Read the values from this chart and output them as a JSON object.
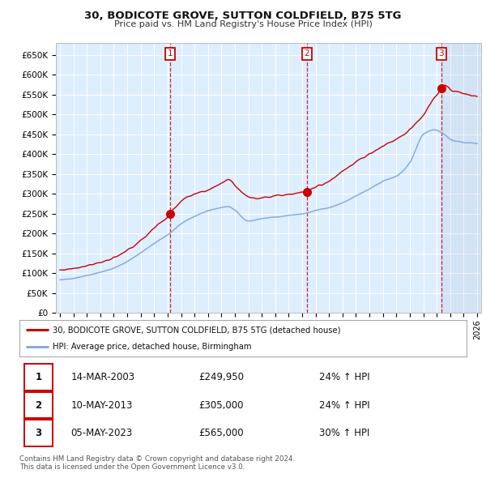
{
  "title": "30, BODICOTE GROVE, SUTTON COLDFIELD, B75 5TG",
  "subtitle": "Price paid vs. HM Land Registry's House Price Index (HPI)",
  "ylim": [
    0,
    680000
  ],
  "yticks": [
    0,
    50000,
    100000,
    150000,
    200000,
    250000,
    300000,
    350000,
    400000,
    450000,
    500000,
    550000,
    600000,
    650000
  ],
  "ytick_labels": [
    "£0",
    "£50K",
    "£100K",
    "£150K",
    "£200K",
    "£250K",
    "£300K",
    "£350K",
    "£400K",
    "£450K",
    "£500K",
    "£550K",
    "£600K",
    "£650K"
  ],
  "red_line_color": "#cc0000",
  "blue_line_color": "#88aadd",
  "bg_color": "#ddeeff",
  "grid_color": "#ffffff",
  "sale_dates": [
    2003.2,
    2013.36,
    2023.34
  ],
  "sale_prices": [
    249950,
    305000,
    565000
  ],
  "sale_labels": [
    "1",
    "2",
    "3"
  ],
  "footer_text": "Contains HM Land Registry data © Crown copyright and database right 2024.\nThis data is licensed under the Open Government Licence v3.0.",
  "legend_entry1": "30, BODICOTE GROVE, SUTTON COLDFIELD, B75 5TG (detached house)",
  "legend_entry2": "HPI: Average price, detached house, Birmingham",
  "table_rows": [
    [
      "1",
      "14-MAR-2003",
      "£249,950",
      "24% ↑ HPI"
    ],
    [
      "2",
      "10-MAY-2013",
      "£305,000",
      "24% ↑ HPI"
    ],
    [
      "3",
      "05-MAY-2023",
      "£565,000",
      "30% ↑ HPI"
    ]
  ]
}
